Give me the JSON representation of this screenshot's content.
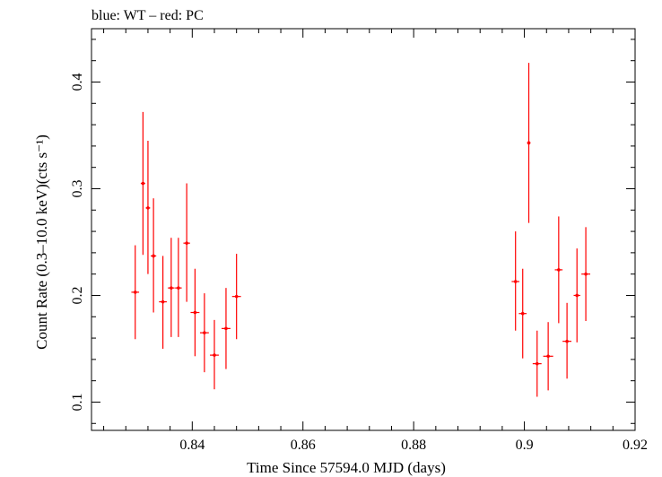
{
  "chart_data": {
    "type": "scatter",
    "title": "blue: WT – red: PC",
    "xlabel": "Time Since 57594.0 MJD (days)",
    "ylabel": "Count Rate (0.3–10.0 keV)(cts s⁻¹)",
    "xlim": [
      0.8218,
      0.92
    ],
    "ylim": [
      0.0735,
      0.45
    ],
    "xticks": [
      0.84,
      0.86,
      0.88,
      0.9,
      0.92
    ],
    "xtick_labels": [
      "0.84",
      "0.86",
      "0.88",
      "0.9",
      "0.92"
    ],
    "yticks": [
      0.1,
      0.2,
      0.3,
      0.4
    ],
    "ytick_labels": [
      "0.1",
      "0.2",
      "0.3",
      "0.4"
    ],
    "grid": false,
    "series": [
      {
        "color": "#ff0000",
        "points": [
          {
            "x": 0.8297,
            "xerr": 0.0007,
            "y": 0.203,
            "ylo": 0.159,
            "yhi": 0.247
          },
          {
            "x": 0.8311,
            "xerr": 0.0004,
            "y": 0.305,
            "ylo": 0.238,
            "yhi": 0.372
          },
          {
            "x": 0.832,
            "xerr": 0.0004,
            "y": 0.282,
            "ylo": 0.22,
            "yhi": 0.345
          },
          {
            "x": 0.833,
            "xerr": 0.0005,
            "y": 0.237,
            "ylo": 0.184,
            "yhi": 0.291
          },
          {
            "x": 0.8347,
            "xerr": 0.0007,
            "y": 0.194,
            "ylo": 0.15,
            "yhi": 0.237
          },
          {
            "x": 0.8362,
            "xerr": 0.0006,
            "y": 0.207,
            "ylo": 0.161,
            "yhi": 0.254
          },
          {
            "x": 0.8375,
            "xerr": 0.0006,
            "y": 0.207,
            "ylo": 0.161,
            "yhi": 0.254
          },
          {
            "x": 0.839,
            "xerr": 0.0006,
            "y": 0.249,
            "ylo": 0.194,
            "yhi": 0.305
          },
          {
            "x": 0.8405,
            "xerr": 0.0008,
            "y": 0.184,
            "ylo": 0.143,
            "yhi": 0.225
          },
          {
            "x": 0.8422,
            "xerr": 0.0008,
            "y": 0.165,
            "ylo": 0.128,
            "yhi": 0.202
          },
          {
            "x": 0.844,
            "xerr": 0.0008,
            "y": 0.144,
            "ylo": 0.112,
            "yhi": 0.177
          },
          {
            "x": 0.8461,
            "xerr": 0.0008,
            "y": 0.169,
            "ylo": 0.131,
            "yhi": 0.207
          },
          {
            "x": 0.848,
            "xerr": 0.0008,
            "y": 0.199,
            "ylo": 0.159,
            "yhi": 0.239
          },
          {
            "x": 0.8984,
            "xerr": 0.0007,
            "y": 0.213,
            "ylo": 0.167,
            "yhi": 0.26
          },
          {
            "x": 0.8997,
            "xerr": 0.0007,
            "y": 0.183,
            "ylo": 0.141,
            "yhi": 0.225
          },
          {
            "x": 0.9008,
            "xerr": 0.0003,
            "y": 0.343,
            "ylo": 0.268,
            "yhi": 0.418
          },
          {
            "x": 0.9023,
            "xerr": 0.0008,
            "y": 0.136,
            "ylo": 0.105,
            "yhi": 0.167
          },
          {
            "x": 0.9043,
            "xerr": 0.0009,
            "y": 0.143,
            "ylo": 0.111,
            "yhi": 0.175
          },
          {
            "x": 0.9062,
            "xerr": 0.0007,
            "y": 0.224,
            "ylo": 0.174,
            "yhi": 0.274
          },
          {
            "x": 0.9077,
            "xerr": 0.0008,
            "y": 0.157,
            "ylo": 0.122,
            "yhi": 0.193
          },
          {
            "x": 0.9095,
            "xerr": 0.0006,
            "y": 0.2,
            "ylo": 0.156,
            "yhi": 0.244
          },
          {
            "x": 0.9111,
            "xerr": 0.0008,
            "y": 0.22,
            "ylo": 0.176,
            "yhi": 0.264
          }
        ]
      }
    ]
  }
}
